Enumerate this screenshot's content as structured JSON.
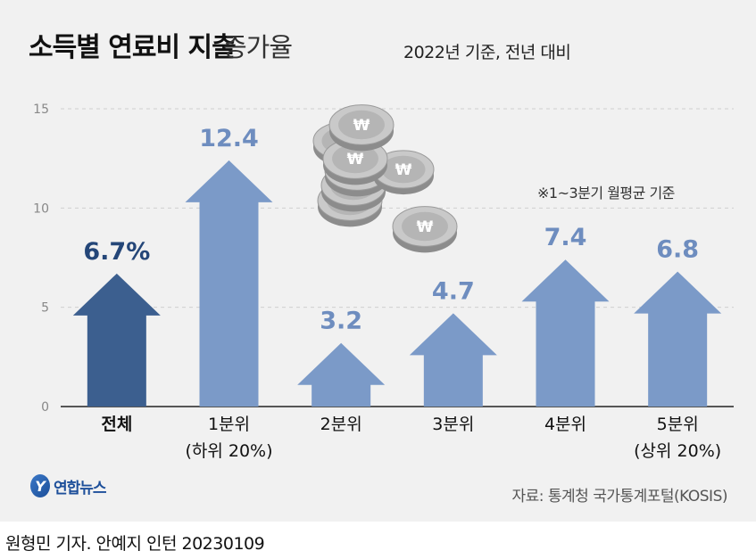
{
  "title": {
    "main": "소득별 연료비 지출",
    "sub": "증가율"
  },
  "subtitle": "2022년 기준, 전년 대비",
  "note": "※1~3분기 월평균 기준",
  "source": "자료: 통계청 국가통계포털(KOSIS)",
  "logo": {
    "mark": "Y",
    "name": "연합뉴스"
  },
  "credit": "원형민 기자. 안예지 인턴  20230109",
  "colors": {
    "total": "#3c5f8f",
    "group": "#7b9ac8",
    "total_label": "#244678",
    "group_label": "#6e8dbf"
  },
  "chart_data": {
    "type": "bar",
    "title": "소득별 연료비 지출 증가율",
    "unit": "%",
    "ylim": [
      0,
      15
    ],
    "yticks": [
      "0",
      "5",
      "10",
      "15"
    ],
    "grid": true,
    "categories": [
      {
        "line1": "전체",
        "line2": ""
      },
      {
        "line1": "1분위",
        "line2": "(하위 20%)"
      },
      {
        "line1": "2분위",
        "line2": ""
      },
      {
        "line1": "3분위",
        "line2": ""
      },
      {
        "line1": "4분위",
        "line2": ""
      },
      {
        "line1": "5분위",
        "line2": "(상위 20%)"
      }
    ],
    "values": [
      6.7,
      12.4,
      3.2,
      4.7,
      7.4,
      6.8
    ],
    "labels": [
      "6.7%",
      "12.4",
      "3.2",
      "4.7",
      "7.4",
      "6.8"
    ]
  }
}
